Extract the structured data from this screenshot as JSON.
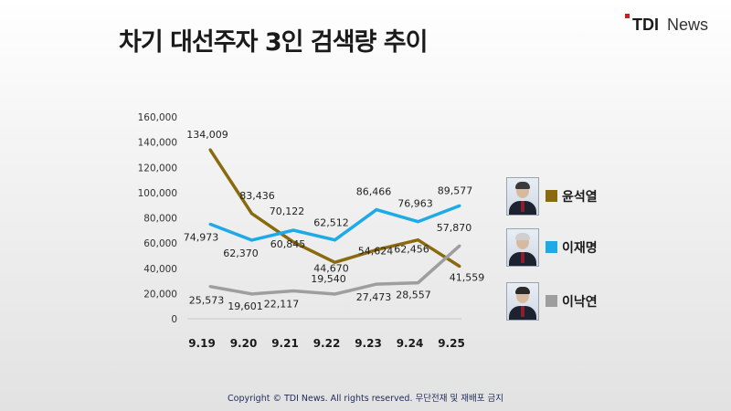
{
  "title": "차기 대선주자 3인 검색량 추이",
  "logo": {
    "mark": "TDI",
    "text": "News"
  },
  "footer": "Copyright © TDI News. All rights reserved. 무단전재 및 재배포 금지",
  "colors": {
    "윤석열": "#8a6a0f",
    "이재명": "#1eaae6",
    "이낙연": "#9e9e9e"
  },
  "legend": [
    {
      "name": "윤석열",
      "icon": "person-photo-icon",
      "hair": "#3a3a3a"
    },
    {
      "name": "이재명",
      "icon": "person-photo-icon",
      "hair": "#cfcfcf"
    },
    {
      "name": "이낙연",
      "icon": "person-photo-icon",
      "hair": "#2a2a2a"
    }
  ],
  "chart_data": {
    "type": "line",
    "categories": [
      "9.19",
      "9.20",
      "9.21",
      "9.22",
      "9.23",
      "9.24",
      "9.25"
    ],
    "series": [
      {
        "name": "윤석열",
        "values": [
          134009,
          83436,
          60845,
          44670,
          54624,
          62456,
          41559
        ]
      },
      {
        "name": "이재명",
        "values": [
          74973,
          62370,
          70122,
          62512,
          86466,
          76963,
          89577
        ]
      },
      {
        "name": "이낙연",
        "values": [
          25573,
          19601,
          22117,
          19540,
          27473,
          28557,
          57870
        ]
      }
    ],
    "ylim": [
      0,
      160000
    ],
    "yticks": [
      0,
      20000,
      40000,
      60000,
      80000,
      100000,
      120000,
      140000,
      160000
    ],
    "grid": false,
    "legend_position": "right"
  }
}
